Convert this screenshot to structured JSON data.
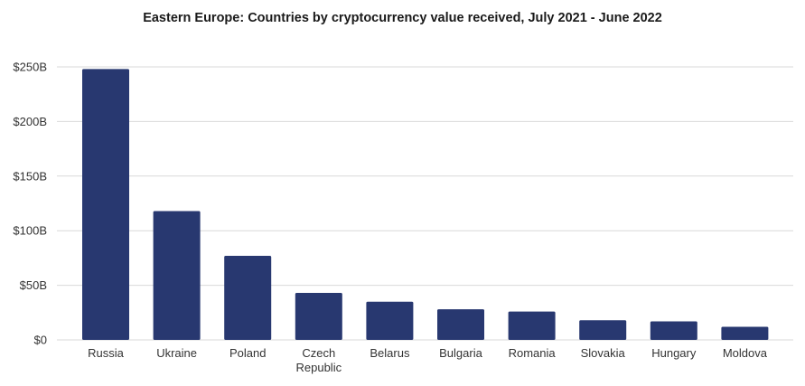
{
  "chart_data": {
    "type": "bar",
    "title": "Eastern Europe: Countries by cryptocurrency value received, July 2021 - June 2022",
    "categories": [
      "Russia",
      "Ukraine",
      "Poland",
      "Czech Republic",
      "Belarus",
      "Bulgaria",
      "Romania",
      "Slovakia",
      "Hungary",
      "Moldova"
    ],
    "category_lines": [
      [
        "Russia"
      ],
      [
        "Ukraine"
      ],
      [
        "Poland"
      ],
      [
        "Czech",
        "Republic"
      ],
      [
        "Belarus"
      ],
      [
        "Bulgaria"
      ],
      [
        "Romania"
      ],
      [
        "Slovakia"
      ],
      [
        "Hungary"
      ],
      [
        "Moldova"
      ]
    ],
    "values": [
      248,
      118,
      77,
      43,
      35,
      28,
      26,
      18,
      17,
      12
    ],
    "value_unit": "USD billions",
    "ylim": [
      0,
      250
    ],
    "yticks": [
      0,
      50,
      100,
      150,
      200,
      250
    ],
    "ytick_labels": [
      "$0",
      "$50B",
      "$100B",
      "$150B",
      "$200B",
      "$250B"
    ],
    "xlabel": "",
    "ylabel": "",
    "grid": true,
    "legend": "none",
    "colors": {
      "bar": "#283870",
      "grid": "#d9d9d9"
    }
  }
}
